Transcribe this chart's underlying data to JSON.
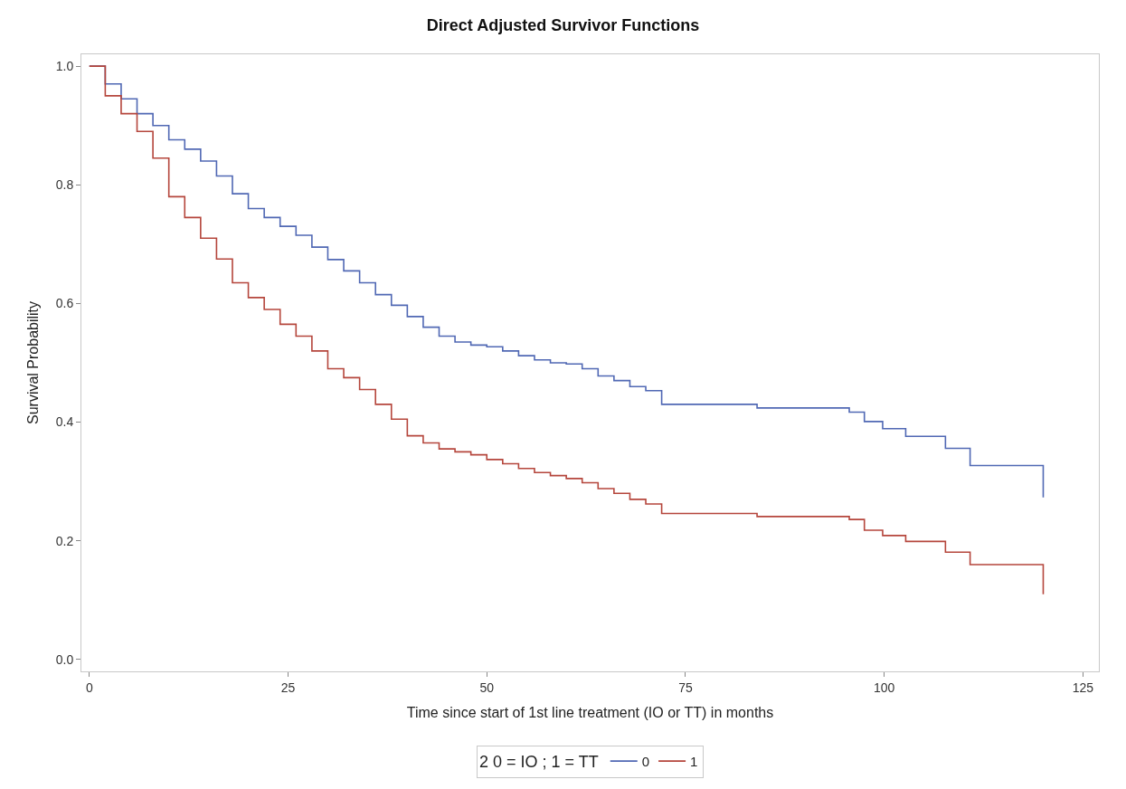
{
  "chart_data": {
    "type": "step",
    "title": "Direct Adjusted Survivor Functions",
    "xlabel": "Time since start of 1st line treatment (IO or TT) in months",
    "ylabel": "Survival Probability",
    "legend_title": "2 0 = IO ; 1 = TT",
    "legend": "bottom",
    "marker": "none",
    "line_style": "solid",
    "xlim": [
      -1,
      127
    ],
    "xticks": [
      0,
      25,
      50,
      75,
      100,
      125
    ],
    "ylim": [
      -0.02,
      1.02
    ],
    "yticks": [
      {
        "value": 0,
        "label": "0.0"
      },
      {
        "value": 0.2,
        "label": "0.2"
      },
      {
        "value": 0.4,
        "label": "0.4"
      },
      {
        "value": 0.6,
        "label": "0.6"
      },
      {
        "value": 0.8,
        "label": "0.8"
      },
      {
        "value": 1,
        "label": "1.0"
      }
    ],
    "series": [
      {
        "name": "0",
        "color": "#5068b4",
        "x": [
          0,
          2,
          4,
          6,
          8,
          10,
          12,
          14,
          16,
          18,
          20,
          22,
          24,
          26,
          28,
          30,
          32,
          34,
          36,
          38,
          40,
          42,
          44,
          46,
          48,
          50,
          52,
          54,
          56,
          58,
          60,
          62,
          64,
          66,
          68,
          70,
          72,
          84,
          95.6,
          97.5,
          99.8,
          102.7,
          107.7,
          110.8,
          119.5,
          120
        ],
        "values": [
          1.0,
          0.97,
          0.945,
          0.92,
          0.9,
          0.876,
          0.86,
          0.84,
          0.815,
          0.785,
          0.76,
          0.745,
          0.73,
          0.715,
          0.695,
          0.674,
          0.655,
          0.635,
          0.615,
          0.597,
          0.578,
          0.56,
          0.545,
          0.535,
          0.53,
          0.527,
          0.52,
          0.512,
          0.505,
          0.5,
          0.498,
          0.49,
          0.478,
          0.47,
          0.46,
          0.453,
          0.43,
          0.424,
          0.417,
          0.401,
          0.389,
          0.376,
          0.356,
          0.327,
          0.327,
          0.273
        ]
      },
      {
        "name": "1",
        "color": "#b5463c",
        "x": [
          0,
          2,
          4,
          6,
          8,
          10,
          12,
          14,
          16,
          18,
          20,
          22,
          24,
          26,
          28,
          30,
          32,
          34,
          36,
          38,
          40,
          42,
          44,
          46,
          48,
          50,
          52,
          54,
          56,
          58,
          60,
          62,
          64,
          66,
          68,
          70,
          72,
          84,
          95.6,
          97.5,
          99.8,
          102.7,
          107.7,
          110.8,
          119.5,
          120
        ],
        "values": [
          1.0,
          0.95,
          0.92,
          0.89,
          0.845,
          0.78,
          0.745,
          0.71,
          0.675,
          0.635,
          0.61,
          0.59,
          0.565,
          0.545,
          0.52,
          0.49,
          0.475,
          0.455,
          0.43,
          0.405,
          0.377,
          0.365,
          0.355,
          0.35,
          0.345,
          0.337,
          0.33,
          0.322,
          0.315,
          0.31,
          0.305,
          0.298,
          0.288,
          0.28,
          0.27,
          0.262,
          0.246,
          0.241,
          0.236,
          0.218,
          0.209,
          0.199,
          0.181,
          0.16,
          0.16,
          0.11
        ]
      }
    ]
  }
}
